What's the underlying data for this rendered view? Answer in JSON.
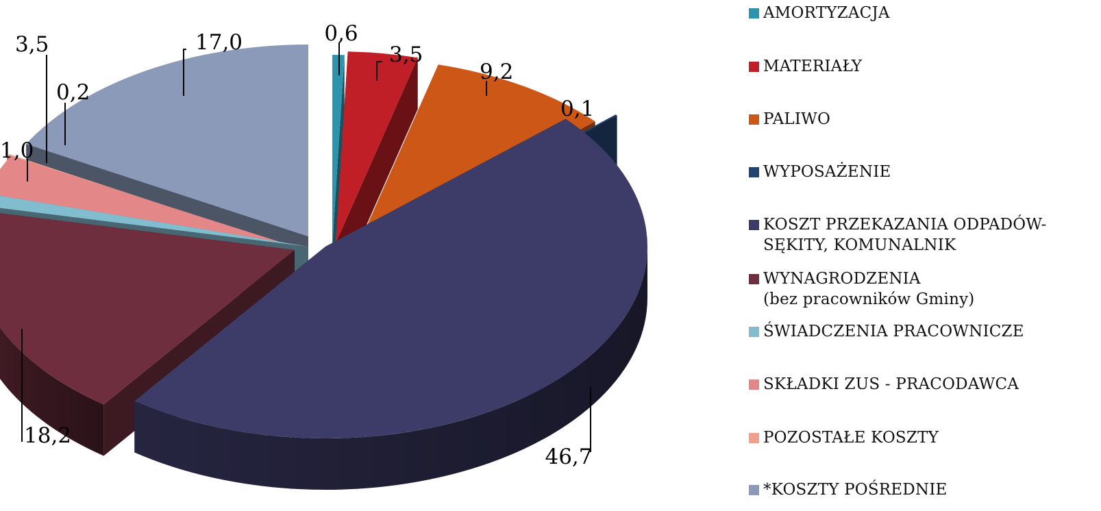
{
  "chart_data": {
    "type": "pie",
    "style": "exploded-3d",
    "unit": "%",
    "slices": [
      {
        "label": "AMORTYZACJA",
        "value": 0.6,
        "value_label": "0,6",
        "color": "#2E94AD"
      },
      {
        "label": "MATERIAŁY",
        "value": 3.5,
        "value_label": "3,5",
        "color": "#C11F27"
      },
      {
        "label": "PALIWO",
        "value": 9.2,
        "value_label": "9,2",
        "color": "#CD5716"
      },
      {
        "label": "WYPOSAŻENIE",
        "value": 0.1,
        "value_label": "0,1",
        "color": "#234472"
      },
      {
        "label": "KOSZT PRZEKAZANIA ODPADÓW-\nSĘKITY, KOMUNALNIK",
        "value": 46.7,
        "value_label": "46,7",
        "color": "#3D3C68"
      },
      {
        "label": "WYNAGRODZENIA",
        "sublabel": "(bez pracowników Gminy)",
        "value": 18.2,
        "value_label": "18,2",
        "color": "#6E2E3E"
      },
      {
        "label": "ŚWIADCZENIA PRACOWNICZE",
        "value": 1.0,
        "value_label": "1,0",
        "color": "#82BCCF"
      },
      {
        "label": "SKŁADKI ZUS - PRACODAWCA",
        "value": 3.5,
        "value_label": "3,5",
        "color": "#E48788"
      },
      {
        "label": "POZOSTAŁE KOSZTY",
        "value": 0.2,
        "value_label": "0,2",
        "color": "#EF9F8C"
      },
      {
        "label": "*KOSZTY POŚREDNIE",
        "value": 17.0,
        "value_label": "17,0",
        "color": "#8A9AB8"
      }
    ],
    "legend_position": "right"
  }
}
